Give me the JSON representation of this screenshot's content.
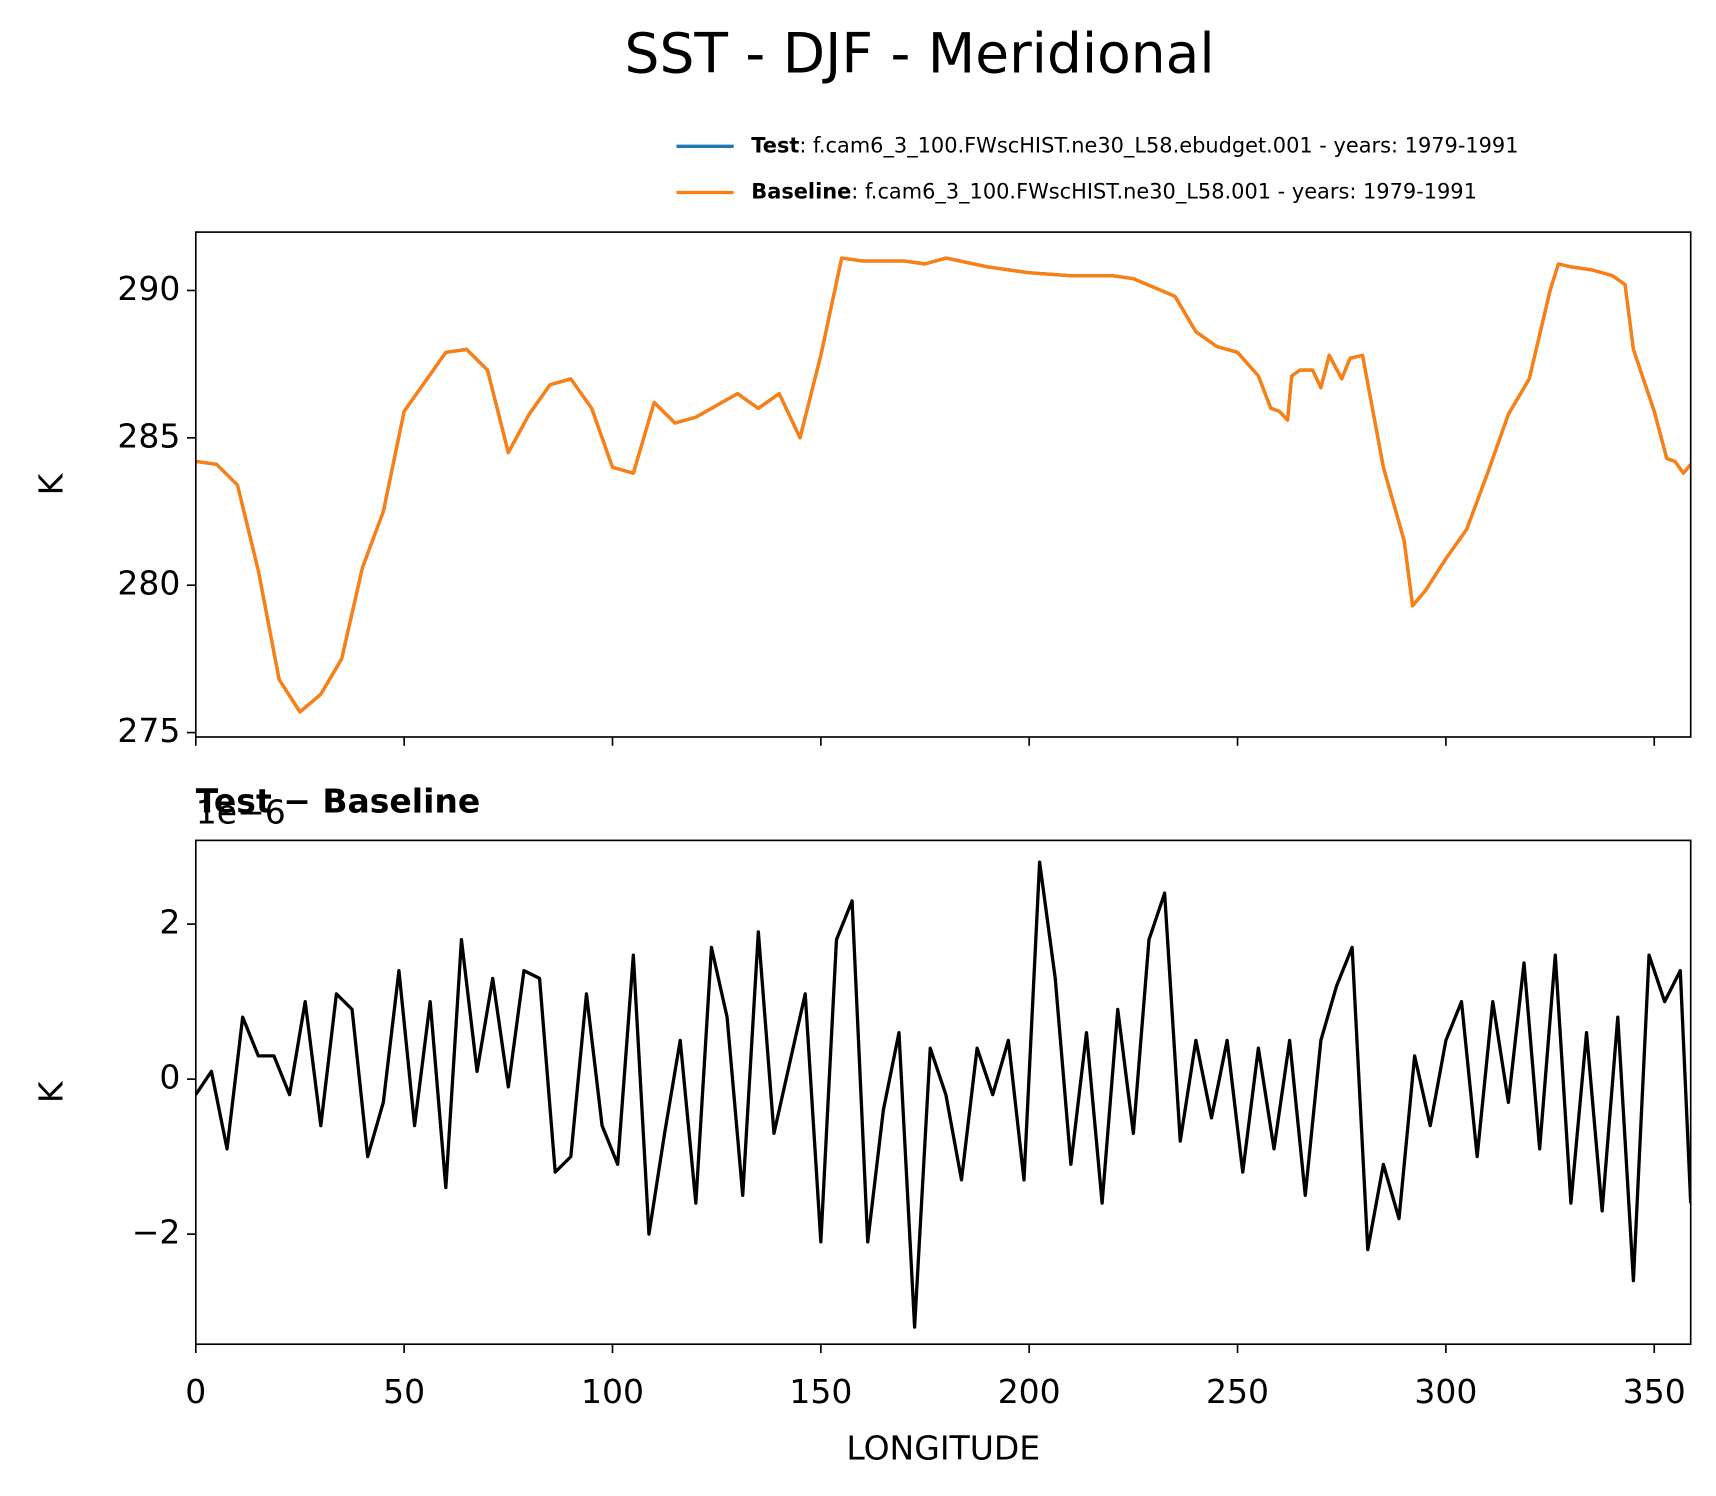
{
  "title": "SST - DJF - Meridional",
  "chart_data": [
    {
      "type": "line",
      "ylabel": "K",
      "x": [
        0,
        5,
        10,
        15,
        20,
        25,
        30,
        35,
        40,
        45,
        50,
        55,
        60,
        65,
        70,
        75,
        80,
        85,
        90,
        95,
        100,
        105,
        110,
        115,
        120,
        125,
        130,
        135,
        140,
        145,
        150,
        155,
        160,
        170,
        175,
        180,
        190,
        200,
        210,
        220,
        225,
        230,
        235,
        240,
        245,
        250,
        255,
        258,
        260,
        262,
        263,
        265,
        268,
        270,
        272,
        275,
        277,
        280,
        285,
        290,
        292,
        295,
        300,
        305,
        310,
        315,
        320,
        325,
        327,
        330,
        335,
        340,
        343,
        345,
        350,
        353,
        355,
        357,
        358.75
      ],
      "series": [
        {
          "name": "Test",
          "description": ": f.cam6_3_100.FWscHIST.ne30_L58.ebudget.001 - years: 1979-1991",
          "color": "#1f77b4",
          "values": [
            284.2,
            284.1,
            283.4,
            280.5,
            276.8,
            275.7,
            276.3,
            277.5,
            280.6,
            282.5,
            285.9,
            286.9,
            287.9,
            288.0,
            287.3,
            284.5,
            285.8,
            286.8,
            287.0,
            286.0,
            284.0,
            283.8,
            286.2,
            285.5,
            285.7,
            286.1,
            286.5,
            286.0,
            286.5,
            285.0,
            287.8,
            291.1,
            291.0,
            291.0,
            290.9,
            291.1,
            290.8,
            290.6,
            290.5,
            290.5,
            290.4,
            290.1,
            289.8,
            288.6,
            288.1,
            287.9,
            287.1,
            286.0,
            285.9,
            285.6,
            287.1,
            287.3,
            287.3,
            286.7,
            287.8,
            287.0,
            287.7,
            287.8,
            284.0,
            281.5,
            279.3,
            279.8,
            280.9,
            281.9,
            283.8,
            285.8,
            287.0,
            290.0,
            290.9,
            290.8,
            290.7,
            290.5,
            290.2,
            288.0,
            285.9,
            284.3,
            284.2,
            283.8,
            284.1
          ]
        },
        {
          "name": "Baseline",
          "description": ": f.cam6_3_100.FWscHIST.ne30_L58.001 - years: 1979-1991",
          "color": "#ff7f0e",
          "values": [
            284.2,
            284.1,
            283.4,
            280.5,
            276.8,
            275.7,
            276.3,
            277.5,
            280.6,
            282.5,
            285.9,
            286.9,
            287.9,
            288.0,
            287.3,
            284.5,
            285.8,
            286.8,
            287.0,
            286.0,
            284.0,
            283.8,
            286.2,
            285.5,
            285.7,
            286.1,
            286.5,
            286.0,
            286.5,
            285.0,
            287.8,
            291.1,
            291.0,
            291.0,
            290.9,
            291.1,
            290.8,
            290.6,
            290.5,
            290.5,
            290.4,
            290.1,
            289.8,
            288.6,
            288.1,
            287.9,
            287.1,
            286.0,
            285.9,
            285.6,
            287.1,
            287.3,
            287.3,
            286.7,
            287.8,
            287.0,
            287.7,
            287.8,
            284.0,
            281.5,
            279.3,
            279.8,
            280.9,
            281.9,
            283.8,
            285.8,
            287.0,
            290.0,
            290.9,
            290.8,
            290.7,
            290.5,
            290.2,
            288.0,
            285.9,
            284.3,
            284.2,
            283.8,
            284.1
          ]
        }
      ],
      "xlim": [
        0,
        358.75
      ],
      "xticks": [
        0,
        50,
        100,
        150,
        200,
        250,
        300,
        350
      ],
      "xtick_labels": false,
      "ylim": [
        274.85,
        291.98
      ],
      "yticks": [
        275,
        280,
        285,
        290
      ],
      "legend": "upper right"
    },
    {
      "type": "line",
      "title": "Test − Baseline",
      "offset_label": "1e−6",
      "xlabel": "LONGITUDE",
      "ylabel": "K",
      "x": [
        0,
        3.75,
        7.5,
        11.25,
        15,
        18.75,
        22.5,
        26.25,
        30,
        33.75,
        37.5,
        41.25,
        45,
        48.75,
        52.5,
        56.25,
        60,
        63.75,
        67.5,
        71.25,
        75,
        78.75,
        82.5,
        86.25,
        90,
        93.75,
        97.5,
        101.25,
        105,
        108.75,
        112.5,
        116.25,
        120,
        123.75,
        127.5,
        131.25,
        135,
        138.75,
        142.5,
        146.25,
        150,
        153.75,
        157.5,
        161.25,
        165,
        168.75,
        172.5,
        176.25,
        180,
        183.75,
        187.5,
        191.25,
        195,
        198.75,
        202.5,
        206.25,
        210,
        213.75,
        217.5,
        221.25,
        225,
        228.75,
        232.5,
        236.25,
        240,
        243.75,
        247.5,
        251.25,
        255,
        258.75,
        262.5,
        266.25,
        270,
        273.75,
        277.5,
        281.25,
        285,
        288.75,
        292.5,
        296.25,
        300,
        303.75,
        307.5,
        311.25,
        315,
        318.75,
        322.5,
        326.25,
        330,
        333.75,
        337.5,
        341.25,
        345,
        348.75,
        352.5,
        356.25,
        358.75
      ],
      "series": [
        {
          "name": "Test − Baseline",
          "color": "#000000",
          "values": [
            -0.2,
            0.1,
            -0.9,
            0.8,
            0.3,
            0.3,
            -0.2,
            1.0,
            -0.6,
            1.1,
            0.9,
            -1.0,
            -0.3,
            1.4,
            -0.6,
            1.0,
            -1.4,
            1.8,
            0.1,
            1.3,
            -0.1,
            1.4,
            1.3,
            -1.2,
            -1.0,
            1.1,
            -0.6,
            -1.1,
            1.6,
            -2.0,
            -0.7,
            0.5,
            -1.6,
            1.7,
            0.8,
            -1.5,
            1.9,
            -0.7,
            0.2,
            1.1,
            -2.1,
            1.8,
            2.3,
            -2.1,
            -0.4,
            0.6,
            -3.2,
            0.4,
            -0.2,
            -1.3,
            0.4,
            -0.2,
            0.5,
            -1.3,
            2.8,
            1.3,
            -1.1,
            0.6,
            -1.6,
            0.9,
            -0.7,
            1.8,
            2.4,
            -0.8,
            0.5,
            -0.5,
            0.5,
            -1.2,
            0.4,
            -0.9,
            0.5,
            -1.5,
            0.5,
            1.2,
            1.7,
            -2.2,
            -1.1,
            -1.8,
            0.3,
            -0.6,
            0.5,
            1.0,
            -1.0,
            1.0,
            -0.3,
            1.5,
            -0.9,
            1.6,
            -1.6,
            0.6,
            -1.7,
            0.8,
            -2.6,
            1.6,
            1.0,
            1.4,
            -1.6
          ]
        }
      ],
      "xlim": [
        0,
        358.75
      ],
      "xticks": [
        0,
        50,
        100,
        150,
        200,
        250,
        300,
        350
      ],
      "xtick_labels": true,
      "ylim": [
        -3.42,
        3.08
      ],
      "yticks": [
        {
          "value": -2,
          "label": "−2"
        },
        0,
        2
      ]
    }
  ]
}
